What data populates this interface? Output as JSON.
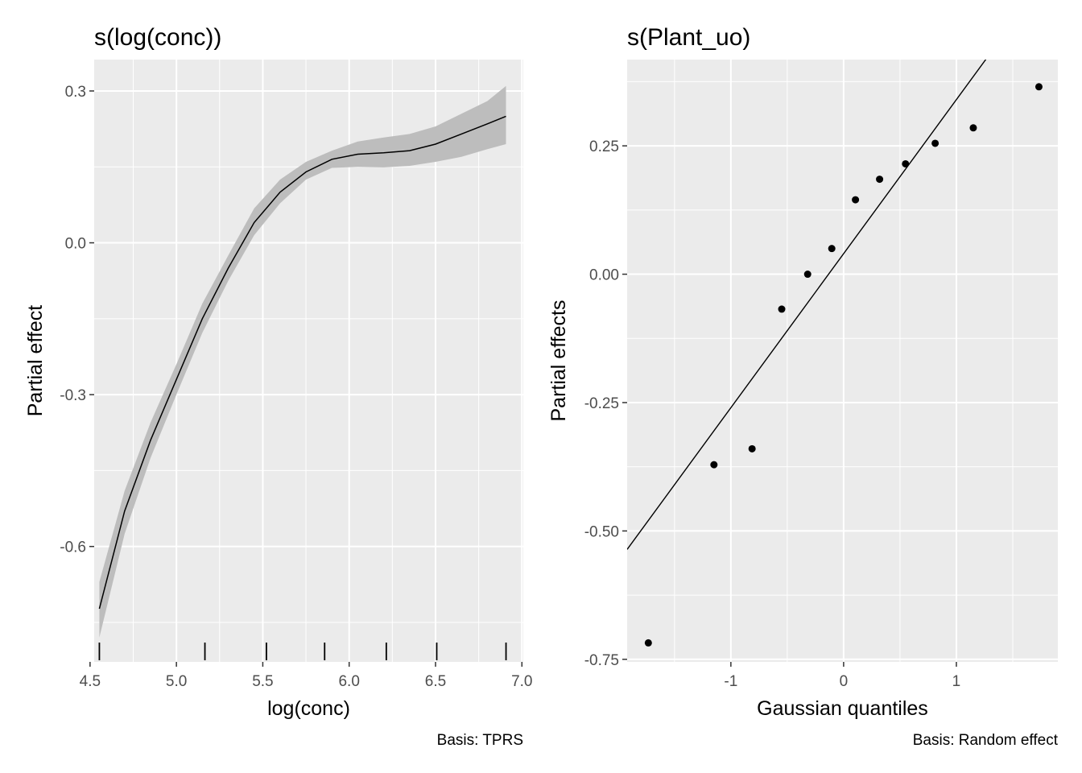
{
  "chart_data": [
    {
      "type": "line",
      "title": "s(log(conc))",
      "xlabel": "log(conc)",
      "ylabel": "Partial effect",
      "caption": "Basis: TPRS",
      "xlim": [
        4.524,
        7.008
      ],
      "ylim": [
        -0.828,
        0.362
      ],
      "xticks": [
        4.5,
        5.0,
        5.5,
        6.0,
        6.5,
        7.0
      ],
      "xtick_labels": [
        "4.5",
        "5.0",
        "5.5",
        "6.0",
        "6.5",
        "7.0"
      ],
      "yticks": [
        0.3,
        0.0,
        -0.3,
        -0.6
      ],
      "ytick_labels": [
        "0.3",
        "0.0",
        "-0.3",
        "-0.6"
      ],
      "grid": true,
      "colors": {
        "panel": "#ebebeb",
        "grid": "#ffffff",
        "band": "#bdbdbd",
        "line": "#000000"
      },
      "series": [
        {
          "x": [
            4.554,
            4.7,
            4.85,
            5.0,
            5.15,
            5.3,
            5.45,
            5.6,
            5.75,
            5.9,
            6.05,
            6.2,
            6.35,
            6.5,
            6.65,
            6.8,
            6.908
          ],
          "y": [
            -0.723,
            -0.53,
            -0.39,
            -0.27,
            -0.15,
            -0.05,
            0.04,
            0.1,
            0.14,
            0.165,
            0.175,
            0.178,
            0.182,
            0.195,
            0.215,
            0.235,
            0.25
          ],
          "lower": [
            -0.78,
            -0.575,
            -0.425,
            -0.3,
            -0.178,
            -0.075,
            0.015,
            0.078,
            0.125,
            0.148,
            0.15,
            0.149,
            0.152,
            0.16,
            0.17,
            0.185,
            0.195
          ],
          "upper": [
            -0.67,
            -0.49,
            -0.355,
            -0.24,
            -0.12,
            -0.025,
            0.068,
            0.125,
            0.16,
            0.182,
            0.2,
            0.208,
            0.215,
            0.23,
            0.255,
            0.28,
            0.31
          ]
        }
      ],
      "rug": [
        4.554,
        5.165,
        5.521,
        5.858,
        6.215,
        6.507,
        6.908
      ]
    },
    {
      "type": "scatter",
      "title": "s(Plant_uo)",
      "xlabel": "Gaussian quantiles",
      "ylabel": "Partial effects",
      "caption": "Basis: Random effect",
      "xlim": [
        -1.92,
        1.9
      ],
      "ylim": [
        -0.755,
        0.418
      ],
      "xticks": [
        -1,
        0,
        1
      ],
      "xtick_labels": [
        "-1",
        "0",
        "1"
      ],
      "yticks": [
        0.25,
        0.0,
        -0.25,
        -0.5,
        -0.75
      ],
      "ytick_labels": [
        "0.25",
        "0.00",
        "-0.25",
        "-0.50",
        "-0.75"
      ],
      "grid": true,
      "colors": {
        "panel": "#ebebeb",
        "grid": "#ffffff",
        "point": "#000000",
        "line": "#000000"
      },
      "points": {
        "x": [
          -1.732,
          -1.15,
          -0.812,
          -0.549,
          -0.319,
          -0.105,
          0.105,
          0.319,
          0.549,
          0.812,
          1.15,
          1.732
        ],
        "y": [
          -0.718,
          -0.371,
          -0.34,
          -0.068,
          0.0,
          0.05,
          0.145,
          0.185,
          0.215,
          0.255,
          0.285,
          0.365
        ]
      },
      "reference_line": {
        "intercept": 0.04,
        "slope": 0.3
      }
    }
  ]
}
